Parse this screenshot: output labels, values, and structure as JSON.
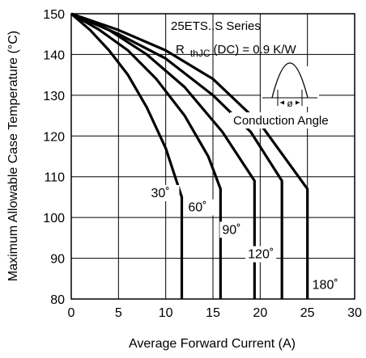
{
  "chart_data": {
    "type": "line",
    "xlabel": "Average Forward Current (A)",
    "ylabel": "Maximum Allowable Case Temperature (°C)",
    "xlim": [
      0,
      30
    ],
    "ylim": [
      80,
      150
    ],
    "x_ticks": [
      0,
      5,
      10,
      15,
      20,
      25,
      30
    ],
    "y_ticks": [
      80,
      90,
      100,
      110,
      120,
      130,
      140,
      150
    ],
    "grid": true,
    "annotations": {
      "series_title": "25ETS..S Series",
      "rth_prefix": "R",
      "rth_sub": "thJC",
      "rth_suffix": "(DC) = 0.9 K/W",
      "conduction_angle": "Conduction Angle",
      "phi": "ø"
    },
    "series": [
      {
        "name": "30˚",
        "points": [
          [
            0,
            150
          ],
          [
            2,
            146
          ],
          [
            4,
            141
          ],
          [
            6,
            135
          ],
          [
            8,
            127
          ],
          [
            10,
            117
          ],
          [
            11.7,
            105
          ],
          [
            11.7,
            80
          ]
        ]
      },
      {
        "name": "60˚",
        "points": [
          [
            0,
            150
          ],
          [
            3,
            146
          ],
          [
            6,
            141
          ],
          [
            9,
            134
          ],
          [
            12,
            125
          ],
          [
            14.5,
            115
          ],
          [
            15.8,
            107
          ],
          [
            15.8,
            80
          ]
        ]
      },
      {
        "name": "90˚",
        "points": [
          [
            0,
            150
          ],
          [
            4,
            146
          ],
          [
            8,
            140
          ],
          [
            12,
            132
          ],
          [
            16,
            121
          ],
          [
            19.4,
            109
          ],
          [
            19.4,
            80
          ]
        ]
      },
      {
        "name": "120˚",
        "points": [
          [
            0,
            150
          ],
          [
            5,
            145
          ],
          [
            10,
            139
          ],
          [
            15,
            130
          ],
          [
            19,
            121
          ],
          [
            22.3,
            109
          ],
          [
            22.3,
            80
          ]
        ]
      },
      {
        "name": "180˚",
        "points": [
          [
            0,
            150
          ],
          [
            5,
            146
          ],
          [
            10,
            141
          ],
          [
            15,
            134
          ],
          [
            20,
            123
          ],
          [
            25,
            107
          ],
          [
            25,
            80
          ]
        ]
      }
    ]
  }
}
